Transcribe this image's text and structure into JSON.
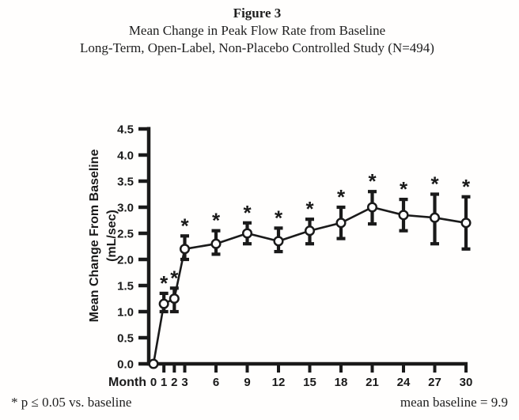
{
  "figure": {
    "label": "Figure 3",
    "title_line1": "Mean Change in Peak Flow Rate from Baseline",
    "title_line2": "Long-Term, Open-Label, Non-Placebo Controlled Study (N=494)"
  },
  "footnotes": {
    "left": "* p ≤ 0.05 vs. baseline",
    "right": "mean baseline = 9.9"
  },
  "chart_data": {
    "type": "line",
    "title": "Mean Change in Peak Flow Rate from Baseline",
    "xlabel": "Month",
    "ylabel_line1": "Mean Change From Baseline",
    "ylabel_line2": "(mL/sec)",
    "x": [
      0,
      1,
      2,
      3,
      6,
      9,
      12,
      15,
      18,
      21,
      24,
      27,
      30
    ],
    "x_tick_labels": [
      "0",
      "1",
      "2",
      "3",
      "6",
      "9",
      "12",
      "15",
      "18",
      "21",
      "24",
      "27",
      "30"
    ],
    "values": [
      0.0,
      1.15,
      1.25,
      2.2,
      2.3,
      2.5,
      2.35,
      2.55,
      2.7,
      3.0,
      2.85,
      2.8,
      2.7
    ],
    "err_up": [
      0,
      0.2,
      0.2,
      0.25,
      0.25,
      0.2,
      0.25,
      0.22,
      0.3,
      0.3,
      0.3,
      0.45,
      0.5
    ],
    "err_down": [
      0,
      0.15,
      0.25,
      0.2,
      0.2,
      0.2,
      0.2,
      0.25,
      0.3,
      0.32,
      0.3,
      0.5,
      0.5
    ],
    "significant": [
      false,
      true,
      true,
      true,
      true,
      true,
      true,
      true,
      true,
      true,
      true,
      true,
      true
    ],
    "significance_symbol": "*",
    "marker": "open-circle",
    "xlim": [
      0,
      30
    ],
    "ylim": [
      0,
      4.5
    ],
    "y_ticks": [
      "0.0",
      "0.5",
      "1.0",
      "1.5",
      "2.0",
      "2.5",
      "3.0",
      "3.5",
      "4.0",
      "4.5"
    ],
    "grid": false,
    "legend": "none",
    "ink_color": "#1a1a1a",
    "marker_fill": "#ffffff"
  }
}
